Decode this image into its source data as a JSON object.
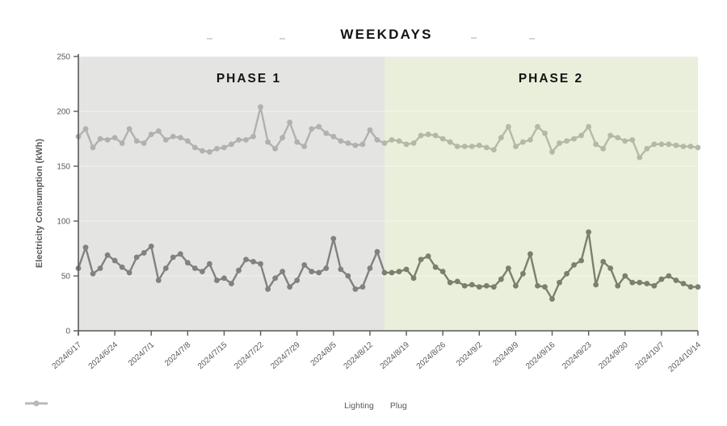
{
  "title": "WEEKDAYS",
  "phase_labels": [
    {
      "label": "PHASE 1"
    },
    {
      "label": "PHASE 2"
    }
  ],
  "y_axis_title": "Electricity Consumption (kWh)",
  "legend": [
    {
      "label": "Lighting",
      "color": "#7f7f7f"
    },
    {
      "label": "Plug",
      "color": "#b9b9b9"
    }
  ],
  "colors": {
    "phase1_bg": "#e4e4e3",
    "phase2_bg": "#e9efdb",
    "axis": "#595959",
    "gridline": "rgba(255,255,255,0.5)",
    "lighting_phase1": "#818181",
    "lighting_phase2": "#79816e",
    "plug_phase1": "#b1b1b1",
    "plug_phase2": "#b2baa6"
  },
  "chart_data": {
    "type": "line",
    "title": "WEEKDAYS",
    "xlabel": "",
    "ylabel": "Electricity Consumption (kWh)",
    "ylim": [
      0,
      250
    ],
    "y_ticks": [
      0,
      50,
      100,
      150,
      200,
      250
    ],
    "grid": "horizontal",
    "legend_position": "bottom",
    "x_tick_labels": [
      "2024/6/17",
      "2024/6/24",
      "2024/7/1",
      "2024/7/8",
      "2024/7/15",
      "2024/7/22",
      "2024/7/29",
      "2024/8/5",
      "2024/8/12",
      "2024/8/19",
      "2024/8/26",
      "2024/9/2",
      "2024/9/9",
      "2024/9/16",
      "2024/9/23",
      "2024/9/30",
      "2024/10/7",
      "2024/10/14"
    ],
    "x_tick_every": 5,
    "dates": [
      "2024/6/17",
      "2024/6/18",
      "2024/6/19",
      "2024/6/20",
      "2024/6/21",
      "2024/6/24",
      "2024/6/25",
      "2024/6/26",
      "2024/6/27",
      "2024/6/28",
      "2024/7/1",
      "2024/7/2",
      "2024/7/3",
      "2024/7/4",
      "2024/7/5",
      "2024/7/8",
      "2024/7/9",
      "2024/7/10",
      "2024/7/11",
      "2024/7/12",
      "2024/7/15",
      "2024/7/16",
      "2024/7/17",
      "2024/7/18",
      "2024/7/19",
      "2024/7/22",
      "2024/7/23",
      "2024/7/24",
      "2024/7/25",
      "2024/7/26",
      "2024/7/29",
      "2024/7/30",
      "2024/7/31",
      "2024/8/1",
      "2024/8/2",
      "2024/8/5",
      "2024/8/6",
      "2024/8/7",
      "2024/8/8",
      "2024/8/9",
      "2024/8/12",
      "2024/8/13",
      "2024/8/14",
      "2024/8/15",
      "2024/8/16",
      "2024/8/19",
      "2024/8/20",
      "2024/8/21",
      "2024/8/22",
      "2024/8/23",
      "2024/8/26",
      "2024/8/27",
      "2024/8/28",
      "2024/8/29",
      "2024/8/30",
      "2024/9/2",
      "2024/9/3",
      "2024/9/4",
      "2024/9/5",
      "2024/9/6",
      "2024/9/9",
      "2024/9/10",
      "2024/9/11",
      "2024/9/12",
      "2024/9/13",
      "2024/9/16",
      "2024/9/17",
      "2024/9/18",
      "2024/9/19",
      "2024/9/20",
      "2024/9/23",
      "2024/9/24",
      "2024/9/25",
      "2024/9/26",
      "2024/9/27",
      "2024/9/30",
      "2024/10/1",
      "2024/10/2",
      "2024/10/3",
      "2024/10/4",
      "2024/10/7",
      "2024/10/8",
      "2024/10/9",
      "2024/10/10",
      "2024/10/11",
      "2024/10/14"
    ],
    "series": [
      {
        "name": "Lighting",
        "values": [
          57,
          76,
          52,
          57,
          69,
          64,
          58,
          53,
          67,
          71,
          77,
          46,
          57,
          67,
          70,
          62,
          57,
          54,
          61,
          46,
          48,
          43,
          55,
          65,
          63,
          61,
          38,
          48,
          54,
          40,
          46,
          60,
          54,
          53,
          57,
          84,
          56,
          50,
          38,
          40,
          57,
          72,
          53,
          53,
          54,
          56,
          48,
          65,
          68,
          58,
          54,
          44,
          45,
          41,
          42,
          40,
          41,
          40,
          47,
          57,
          41,
          52,
          70,
          41,
          40,
          29,
          44,
          52,
          60,
          64,
          90,
          42,
          63,
          57,
          41,
          50,
          44,
          44,
          43,
          41,
          47,
          50,
          46,
          43,
          40,
          40
        ]
      },
      {
        "name": "Plug",
        "values": [
          177,
          184,
          167,
          175,
          174,
          176,
          171,
          184,
          173,
          171,
          179,
          182,
          174,
          177,
          176,
          173,
          167,
          164,
          163,
          166,
          167,
          170,
          174,
          174,
          177,
          204,
          172,
          166,
          176,
          190,
          172,
          168,
          184,
          186,
          180,
          177,
          173,
          171,
          169,
          170,
          183,
          174,
          171,
          174,
          173,
          170,
          171,
          178,
          179,
          178,
          175,
          172,
          168,
          168,
          168,
          169,
          167,
          165,
          176,
          186,
          168,
          172,
          174,
          186,
          180,
          163,
          171,
          173,
          175,
          178,
          186,
          170,
          166,
          178,
          176,
          173,
          174,
          158,
          166,
          170,
          170,
          170,
          169,
          168,
          168,
          167
        ]
      }
    ],
    "phases": [
      {
        "label": "PHASE 1",
        "start_index": 0,
        "end_index": 42,
        "bg": "#e4e4e3",
        "series_colors": {
          "Lighting": "#818181",
          "Plug": "#b1b1b1"
        }
      },
      {
        "label": "PHASE 2",
        "start_index": 42,
        "end_index": 85,
        "bg": "#e9efdb",
        "series_colors": {
          "Lighting": "#79816e",
          "Plug": "#b2baa6"
        }
      }
    ]
  }
}
